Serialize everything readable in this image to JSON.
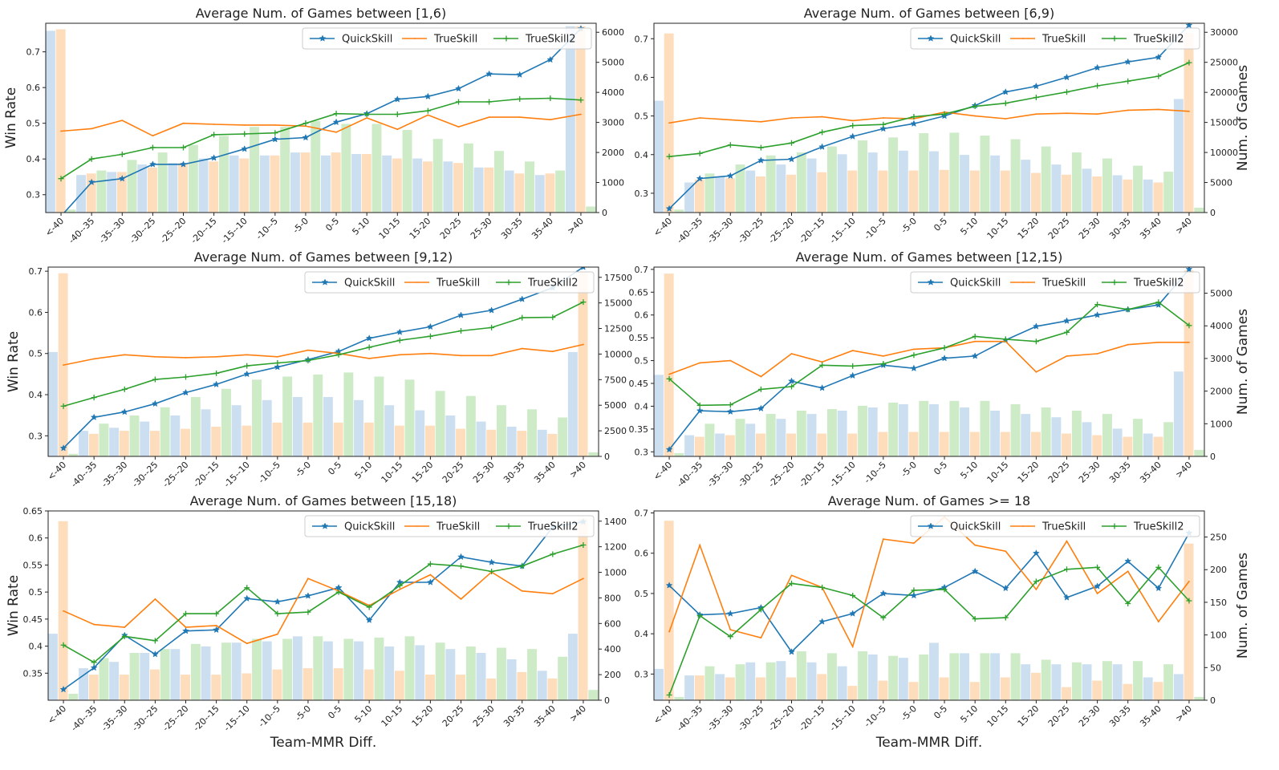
{
  "colors": {
    "quickskill": "#1f77b4",
    "trueskill": "#ff7f0e",
    "trueskill2": "#2ca02c",
    "bar_quickskill": "#c6dbef",
    "bar_trueskill": "#fdd9b5",
    "bar_trueskill2": "#c7e9c0"
  },
  "chart_data": [
    {
      "type": "bar+line",
      "title": "Average Num. of Games between [1,6)",
      "xlabel": "",
      "ylabel": "Win Rate",
      "ylabel2": "",
      "categories": [
        "<-40",
        "-40--35",
        "-35--30",
        "-30--25",
        "-25--20",
        "-20--15",
        "-15--10",
        "-10--5",
        "-5-0",
        "0-5",
        "5-10",
        "10-15",
        "15-20",
        "20-25",
        "25-30",
        "30-35",
        "35-40",
        ">40"
      ],
      "ylim": [
        0.25,
        0.78
      ],
      "yticks": [
        0.3,
        0.4,
        0.5,
        0.6,
        0.7
      ],
      "y2lim": [
        0,
        6300
      ],
      "y2ticks": [
        0,
        1000,
        2000,
        3000,
        4000,
        5000,
        6000
      ],
      "legend": [
        "QuickSkill",
        "TrueSkill",
        "TrueSkill2"
      ],
      "lines": {
        "QuickSkill": [
          0.24,
          0.335,
          0.345,
          0.385,
          0.385,
          0.403,
          0.428,
          0.455,
          0.46,
          0.503,
          0.527,
          0.567,
          0.575,
          0.597,
          0.638,
          0.636,
          0.678,
          0.765
        ],
        "TrueSkill": [
          0.478,
          0.485,
          0.508,
          0.465,
          0.5,
          0.497,
          0.495,
          0.495,
          0.492,
          0.475,
          0.515,
          0.483,
          0.523,
          0.49,
          0.517,
          0.517,
          0.51,
          0.525
        ],
        "TrueSkill2": [
          0.345,
          0.4,
          0.413,
          0.432,
          0.432,
          0.468,
          0.47,
          0.473,
          0.5,
          0.527,
          0.525,
          0.525,
          0.535,
          0.56,
          0.56,
          0.568,
          0.57,
          0.565
        ]
      },
      "bars": {
        "QuickSkill": [
          6050,
          1250,
          1350,
          1600,
          1650,
          1800,
          1900,
          1900,
          2000,
          1900,
          1950,
          1900,
          1800,
          1700,
          1500,
          1400,
          1250,
          6200
        ],
        "TrueSkill": [
          6100,
          1300,
          1350,
          1500,
          1650,
          1700,
          1800,
          1900,
          2000,
          2000,
          1950,
          1800,
          1700,
          1650,
          1500,
          1300,
          1300,
          6200
        ],
        "TrueSkill2": [
          100,
          1400,
          1750,
          2000,
          2250,
          2550,
          2850,
          2850,
          3050,
          2950,
          2950,
          2750,
          2450,
          2300,
          2050,
          1700,
          1400,
          200
        ]
      }
    },
    {
      "type": "bar+line",
      "title": "Average Num. of Games between [6,9)",
      "xlabel": "",
      "ylabel": "",
      "ylabel2": "Num. of Games",
      "categories": [
        "<-40",
        "-40--35",
        "-35--30",
        "-30--25",
        "-25--20",
        "-20--15",
        "-15--10",
        "-10--5",
        "-5-0",
        "0-5",
        "5-10",
        "10-15",
        "15-20",
        "20-25",
        "25-30",
        "30-35",
        "35-40",
        ">40"
      ],
      "ylim": [
        0.25,
        0.74
      ],
      "yticks": [
        0.3,
        0.4,
        0.5,
        0.6,
        0.7
      ],
      "y2lim": [
        0,
        31500
      ],
      "y2ticks": [
        0,
        5000,
        10000,
        15000,
        20000,
        25000,
        30000
      ],
      "legend": [
        "QuickSkill",
        "TrueSkill",
        "TrueSkill2"
      ],
      "lines": {
        "QuickSkill": [
          0.26,
          0.338,
          0.345,
          0.385,
          0.388,
          0.42,
          0.447,
          0.467,
          0.48,
          0.5,
          0.527,
          0.562,
          0.577,
          0.6,
          0.625,
          0.64,
          0.652,
          0.735
        ],
        "TrueSkill": [
          0.482,
          0.495,
          0.49,
          0.485,
          0.495,
          0.498,
          0.488,
          0.495,
          0.493,
          0.51,
          0.5,
          0.493,
          0.505,
          0.507,
          0.505,
          0.515,
          0.517,
          0.512
        ],
        "TrueSkill2": [
          0.395,
          0.403,
          0.425,
          0.418,
          0.43,
          0.458,
          0.475,
          0.478,
          0.498,
          0.505,
          0.525,
          0.533,
          0.548,
          0.562,
          0.578,
          0.59,
          0.603,
          0.638
        ]
      },
      "bars": {
        "QuickSkill": [
          18600,
          5000,
          6000,
          7000,
          8000,
          9000,
          9700,
          10000,
          10300,
          10200,
          9600,
          9500,
          8800,
          8000,
          7300,
          6200,
          5500,
          18900
        ],
        "TrueSkill": [
          29800,
          5500,
          5700,
          6000,
          6300,
          6700,
          7000,
          7000,
          7000,
          7100,
          7000,
          7000,
          6600,
          6300,
          6000,
          5500,
          5000,
          29900
        ],
        "TrueSkill2": [
          500,
          6500,
          8000,
          9500,
          10000,
          11000,
          12000,
          12500,
          13200,
          13300,
          12800,
          12200,
          11000,
          10000,
          9000,
          7800,
          6800,
          800
        ]
      }
    },
    {
      "type": "bar+line",
      "title": "Average Num. of Games between [9,12)",
      "xlabel": "",
      "ylabel": "Win Rate",
      "ylabel2": "",
      "categories": [
        "<-40",
        "-40--35",
        "-35--30",
        "-30--25",
        "-25--20",
        "-20--15",
        "-15--10",
        "-10--5",
        "-5-0",
        "0-5",
        "5-10",
        "10-15",
        "15-20",
        "20-25",
        "25-30",
        "30-35",
        "35-40",
        ">40"
      ],
      "ylim": [
        0.25,
        0.71
      ],
      "yticks": [
        0.3,
        0.4,
        0.5,
        0.6,
        0.7
      ],
      "y2lim": [
        0,
        18500
      ],
      "y2ticks": [
        0,
        2500,
        5000,
        7500,
        10000,
        12500,
        15000,
        17500
      ],
      "legend": [
        "QuickSkill",
        "TrueSkill",
        "TrueSkill2"
      ],
      "lines": {
        "QuickSkill": [
          0.27,
          0.345,
          0.358,
          0.378,
          0.405,
          0.425,
          0.45,
          0.467,
          0.485,
          0.505,
          0.537,
          0.552,
          0.565,
          0.593,
          0.605,
          0.632,
          0.66,
          0.71
        ],
        "TrueSkill": [
          0.472,
          0.487,
          0.497,
          0.492,
          0.49,
          0.492,
          0.497,
          0.492,
          0.508,
          0.5,
          0.488,
          0.497,
          0.5,
          0.495,
          0.495,
          0.512,
          0.505,
          0.522
        ],
        "TrueSkill2": [
          0.372,
          0.393,
          0.413,
          0.437,
          0.443,
          0.452,
          0.47,
          0.477,
          0.483,
          0.497,
          0.515,
          0.532,
          0.542,
          0.555,
          0.563,
          0.587,
          0.588,
          0.625
        ]
      },
      "bars": {
        "QuickSkill": [
          10200,
          2500,
          2800,
          3400,
          4000,
          4600,
          5000,
          5500,
          5800,
          5800,
          5500,
          5000,
          4500,
          4000,
          3400,
          2900,
          2600,
          10200
        ],
        "TrueSkill": [
          17900,
          2200,
          2500,
          2500,
          2700,
          2900,
          3000,
          3300,
          3300,
          3300,
          3300,
          3000,
          3000,
          2700,
          2600,
          2500,
          2200,
          18000
        ],
        "TrueSkill2": [
          250,
          3200,
          4000,
          4800,
          5800,
          6600,
          7500,
          7800,
          8000,
          8200,
          7800,
          7500,
          6400,
          5900,
          5000,
          4600,
          3800,
          400
        ]
      }
    },
    {
      "type": "bar+line",
      "title": "Average Num. of Games between [12,15)",
      "xlabel": "",
      "ylabel": "",
      "ylabel2": "Num. of Games",
      "categories": [
        "<-40",
        "-40--35",
        "-35--30",
        "-30--25",
        "-25--20",
        "-20--15",
        "-15--10",
        "-10--5",
        "-5-0",
        "0-5",
        "5-10",
        "10-15",
        "15-20",
        "20-25",
        "25-30",
        "30-35",
        "35-40",
        ">40"
      ],
      "ylim": [
        0.29,
        0.705
      ],
      "yticks": [
        0.3,
        0.35,
        0.4,
        0.45,
        0.5,
        0.55,
        0.6,
        0.65,
        0.7
      ],
      "y2lim": [
        0,
        5800
      ],
      "y2ticks": [
        0,
        1000,
        2000,
        3000,
        4000,
        5000
      ],
      "legend": [
        "QuickSkill",
        "TrueSkill",
        "TrueSkill2"
      ],
      "lines": {
        "QuickSkill": [
          0.305,
          0.39,
          0.388,
          0.395,
          0.455,
          0.44,
          0.467,
          0.49,
          0.483,
          0.505,
          0.51,
          0.545,
          0.575,
          0.587,
          0.6,
          0.612,
          0.622,
          0.7
        ],
        "TrueSkill": [
          0.47,
          0.495,
          0.5,
          0.465,
          0.515,
          0.497,
          0.522,
          0.51,
          0.525,
          0.528,
          0.542,
          0.542,
          0.475,
          0.51,
          0.515,
          0.535,
          0.54,
          0.54
        ],
        "TrueSkill2": [
          0.46,
          0.402,
          0.403,
          0.437,
          0.443,
          0.49,
          0.488,
          0.493,
          0.512,
          0.528,
          0.553,
          0.547,
          0.542,
          0.562,
          0.623,
          0.612,
          0.628,
          0.577
        ]
      },
      "bars": {
        "QuickSkill": [
          2500,
          650,
          700,
          1000,
          1150,
          1300,
          1400,
          1500,
          1600,
          1600,
          1500,
          1400,
          1300,
          1200,
          1050,
          850,
          700,
          2600
        ],
        "TrueSkill": [
          5600,
          600,
          650,
          700,
          700,
          700,
          700,
          750,
          750,
          750,
          750,
          750,
          750,
          700,
          650,
          600,
          600,
          5700
        ],
        "TrueSkill2": [
          100,
          1000,
          1150,
          1300,
          1400,
          1450,
          1550,
          1650,
          1700,
          1700,
          1700,
          1600,
          1500,
          1400,
          1300,
          1150,
          1050,
          200
        ]
      }
    },
    {
      "type": "bar+line",
      "title": "Average Num. of Games between [15,18)",
      "xlabel": "Team-MMR Diff.",
      "ylabel": "Win Rate",
      "ylabel2": "",
      "categories": [
        "<-40",
        "-40--35",
        "-35--30",
        "-30--25",
        "-25--20",
        "-20--15",
        "-15--10",
        "-10--5",
        "-5-0",
        "0-5",
        "5-10",
        "10-15",
        "15-20",
        "20-25",
        "25-30",
        "30-35",
        "35-40",
        ">40"
      ],
      "ylim": [
        0.3,
        0.65
      ],
      "yticks": [
        0.35,
        0.4,
        0.45,
        0.5,
        0.55,
        0.6,
        0.65
      ],
      "y2lim": [
        0,
        1480
      ],
      "y2ticks": [
        0,
        200,
        400,
        600,
        800,
        1000,
        1200,
        1400
      ],
      "legend": [
        "QuickSkill",
        "TrueSkill",
        "TrueSkill2"
      ],
      "lines": {
        "QuickSkill": [
          0.32,
          0.36,
          0.42,
          0.385,
          0.428,
          0.43,
          0.488,
          0.482,
          0.493,
          0.508,
          0.448,
          0.518,
          0.518,
          0.565,
          0.555,
          0.548,
          0.62,
          0.63
        ],
        "TrueSkill": [
          0.465,
          0.44,
          0.435,
          0.487,
          0.435,
          0.438,
          0.405,
          0.422,
          0.525,
          0.502,
          0.475,
          0.505,
          0.532,
          0.487,
          0.537,
          0.502,
          0.497,
          0.525
        ],
        "TrueSkill2": [
          0.402,
          0.37,
          0.418,
          0.41,
          0.46,
          0.46,
          0.508,
          0.46,
          0.463,
          0.5,
          0.472,
          0.512,
          0.552,
          0.548,
          0.538,
          0.548,
          0.57,
          0.587
        ]
      },
      "bars": {
        "QuickSkill": [
          520,
          250,
          300,
          370,
          400,
          420,
          450,
          460,
          500,
          460,
          460,
          420,
          430,
          400,
          370,
          320,
          230,
          520
        ],
        "TrueSkill": [
          1400,
          200,
          200,
          240,
          200,
          200,
          210,
          240,
          250,
          250,
          240,
          230,
          200,
          200,
          170,
          220,
          170,
          1420
        ],
        "TrueSkill2": [
          50,
          330,
          370,
          400,
          440,
          450,
          480,
          480,
          500,
          480,
          490,
          500,
          450,
          420,
          410,
          400,
          340,
          80
        ]
      }
    },
    {
      "type": "bar+line",
      "title": "Average Num. of Games >= 18",
      "xlabel": "Team-MMR Diff.",
      "ylabel": "",
      "ylabel2": "Num. of Games",
      "categories": [
        "<-40",
        "-40--35",
        "-35--30",
        "-30--25",
        "-25--20",
        "-20--15",
        "-15--10",
        "-10--5",
        "-5-0",
        "0-5",
        "5-10",
        "10-15",
        "15-20",
        "20-25",
        "25-30",
        "30-35",
        "35-40",
        ">40"
      ],
      "ylim": [
        0.235,
        0.705
      ],
      "yticks": [
        0.3,
        0.4,
        0.5,
        0.6,
        0.7
      ],
      "y2lim": [
        0,
        290
      ],
      "y2ticks": [
        0,
        50,
        100,
        150,
        200,
        250
      ],
      "legend": [
        "QuickSkill",
        "TrueSkill",
        "TrueSkill2"
      ],
      "lines": {
        "QuickSkill": [
          0.52,
          0.447,
          0.45,
          0.465,
          0.355,
          0.43,
          0.45,
          0.5,
          0.495,
          0.515,
          0.555,
          0.513,
          0.6,
          0.49,
          0.518,
          0.58,
          0.513,
          0.65
        ],
        "TrueSkill": [
          0.405,
          0.62,
          0.41,
          0.39,
          0.545,
          0.515,
          0.368,
          0.635,
          0.625,
          0.69,
          0.62,
          0.605,
          0.51,
          0.63,
          0.5,
          0.555,
          0.43,
          0.53
        ],
        "TrueSkill2": [
          0.248,
          0.445,
          0.393,
          0.46,
          0.525,
          0.515,
          0.495,
          0.44,
          0.508,
          0.51,
          0.437,
          0.44,
          0.53,
          0.56,
          0.565,
          0.475,
          0.565,
          0.482
        ]
      },
      "bars": {
        "QuickSkill": [
          48,
          38,
          40,
          58,
          60,
          58,
          52,
          70,
          65,
          88,
          72,
          72,
          55,
          55,
          55,
          55,
          35,
          40
        ],
        "TrueSkill": [
          275,
          38,
          35,
          35,
          35,
          40,
          22,
          30,
          28,
          35,
          28,
          35,
          42,
          20,
          30,
          25,
          28,
          240
        ],
        "TrueSkill2": [
          5,
          52,
          55,
          58,
          75,
          72,
          75,
          68,
          70,
          72,
          72,
          72,
          62,
          58,
          60,
          60,
          55,
          5
        ]
      }
    }
  ]
}
